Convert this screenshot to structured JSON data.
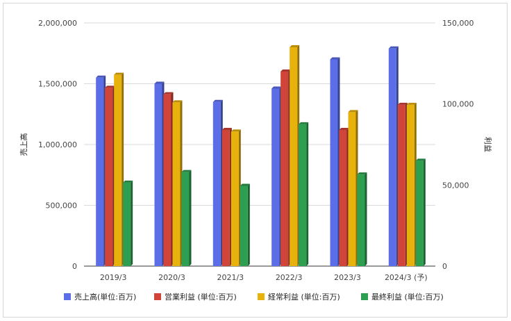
{
  "chart_data": {
    "type": "bar",
    "categories": [
      "2019/3",
      "2020/3",
      "2021/3",
      "2022/3",
      "2023/3",
      "2024/3 (予)"
    ],
    "left_axis": {
      "label": "売上高",
      "ylim": [
        0,
        2000000
      ],
      "ticks": [
        "0",
        "500,000",
        "1,000,000",
        "1,500,000",
        "2,000,000"
      ],
      "tick_values": [
        0,
        500000,
        1000000,
        1500000,
        2000000
      ]
    },
    "right_axis": {
      "label": "利益",
      "ylim": [
        0,
        150000
      ],
      "ticks": [
        "0",
        "50,000",
        "100,000",
        "150,000"
      ],
      "tick_values": [
        0,
        50000,
        100000,
        150000
      ]
    },
    "series": [
      {
        "name": "売上高(単位:百万)",
        "axis": "left",
        "color": "#5b6ee8",
        "values": [
          1550000,
          1500000,
          1350000,
          1460000,
          1700000,
          1790000
        ]
      },
      {
        "name": "営業利益 (単位:百万)",
        "axis": "right",
        "color": "#d0443a",
        "values": [
          110000,
          106000,
          84000,
          120000,
          84000,
          99500
        ]
      },
      {
        "name": "経常利益 (単位:百万)",
        "axis": "right",
        "color": "#e8b20d",
        "values": [
          118000,
          101000,
          83000,
          135000,
          95000,
          99500
        ]
      },
      {
        "name": "最終利益 (単位:百万)",
        "axis": "right",
        "color": "#2e9e50",
        "values": [
          51500,
          58000,
          49500,
          87500,
          56500,
          65000
        ]
      }
    ],
    "grid": true,
    "legend_position": "bottom"
  }
}
